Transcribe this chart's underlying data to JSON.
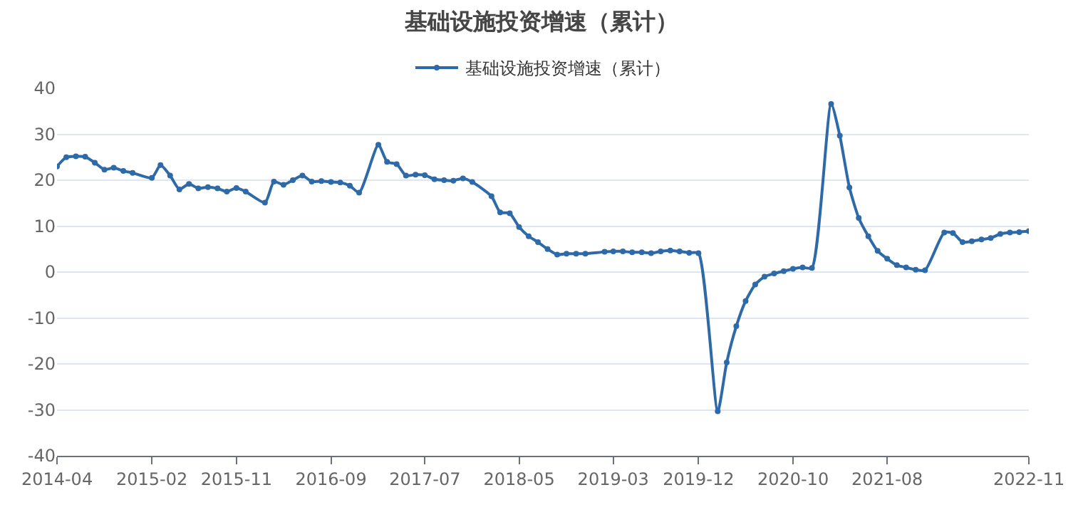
{
  "chart_data": {
    "type": "line",
    "title": "基础设施投资增速（累计）",
    "x": [
      "2014-04",
      "2014-05",
      "2014-06",
      "2014-07",
      "2014-08",
      "2014-09",
      "2014-10",
      "2014-11",
      "2014-12",
      "2015-02",
      "2015-03",
      "2015-04",
      "2015-05",
      "2015-06",
      "2015-07",
      "2015-08",
      "2015-09",
      "2015-10",
      "2015-11",
      "2015-12",
      "2016-02",
      "2016-03",
      "2016-04",
      "2016-05",
      "2016-06",
      "2016-07",
      "2016-08",
      "2016-09",
      "2016-10",
      "2016-11",
      "2016-12",
      "2017-02",
      "2017-03",
      "2017-04",
      "2017-05",
      "2017-06",
      "2017-07",
      "2017-08",
      "2017-09",
      "2017-10",
      "2017-11",
      "2017-12",
      "2018-02",
      "2018-03",
      "2018-04",
      "2018-05",
      "2018-06",
      "2018-07",
      "2018-08",
      "2018-09",
      "2018-10",
      "2018-11",
      "2018-12",
      "2019-02",
      "2019-03",
      "2019-04",
      "2019-05",
      "2019-06",
      "2019-07",
      "2019-08",
      "2019-09",
      "2019-10",
      "2019-11",
      "2019-12",
      "2020-02",
      "2020-03",
      "2020-04",
      "2020-05",
      "2020-06",
      "2020-07",
      "2020-08",
      "2020-09",
      "2020-10",
      "2020-11",
      "2020-12",
      "2021-02",
      "2021-03",
      "2021-04",
      "2021-05",
      "2021-06",
      "2021-07",
      "2021-08",
      "2021-09",
      "2021-10",
      "2021-11",
      "2021-12",
      "2022-02",
      "2022-03",
      "2022-04",
      "2022-05",
      "2022-06",
      "2022-07",
      "2022-08",
      "2022-09",
      "2022-10",
      "2022-11"
    ],
    "series": [
      {
        "name": "基础设施投资增速（累计）",
        "color": "#2e6aa8",
        "values": [
          23.0,
          25.0,
          25.2,
          25.1,
          23.8,
          22.3,
          22.7,
          22.0,
          21.6,
          20.5,
          23.3,
          21.0,
          18.0,
          19.2,
          18.2,
          18.5,
          18.2,
          17.5,
          18.3,
          17.5,
          15.1,
          19.7,
          19.0,
          20.0,
          21.0,
          19.7,
          19.8,
          19.6,
          19.5,
          18.8,
          17.3,
          27.7,
          24.0,
          23.5,
          21.0,
          21.2,
          21.1,
          20.2,
          20.0,
          19.9,
          20.4,
          19.6,
          16.5,
          13.0,
          12.8,
          9.8,
          7.8,
          6.5,
          5.0,
          3.8,
          4.0,
          4.0,
          4.0,
          4.4,
          4.5,
          4.5,
          4.3,
          4.3,
          4.1,
          4.5,
          4.7,
          4.5,
          4.2,
          4.1,
          -30.3,
          -19.7,
          -11.8,
          -6.3,
          -2.7,
          -1.0,
          -0.3,
          0.2,
          0.7,
          1.0,
          0.9,
          36.6,
          29.7,
          18.4,
          11.8,
          7.8,
          4.6,
          2.9,
          1.5,
          1.0,
          0.5,
          0.4,
          8.6,
          8.5,
          6.5,
          6.7,
          7.1,
          7.4,
          8.3,
          8.6,
          8.7,
          8.9
        ]
      }
    ],
    "xlim": [
      "2014-04",
      "2022-11"
    ],
    "xticks": [
      "2014-04",
      "2015-02",
      "2015-11",
      "2016-09",
      "2017-07",
      "2018-05",
      "2019-03",
      "2019-12",
      "2020-10",
      "2021-08",
      "2022-11"
    ],
    "ylim": [
      -40,
      40
    ],
    "yticks": [
      -40,
      -30,
      -20,
      -10,
      0,
      10,
      20,
      30,
      40
    ],
    "grid": "y",
    "legend": "top",
    "marker": "circle",
    "line_style": "solid"
  }
}
